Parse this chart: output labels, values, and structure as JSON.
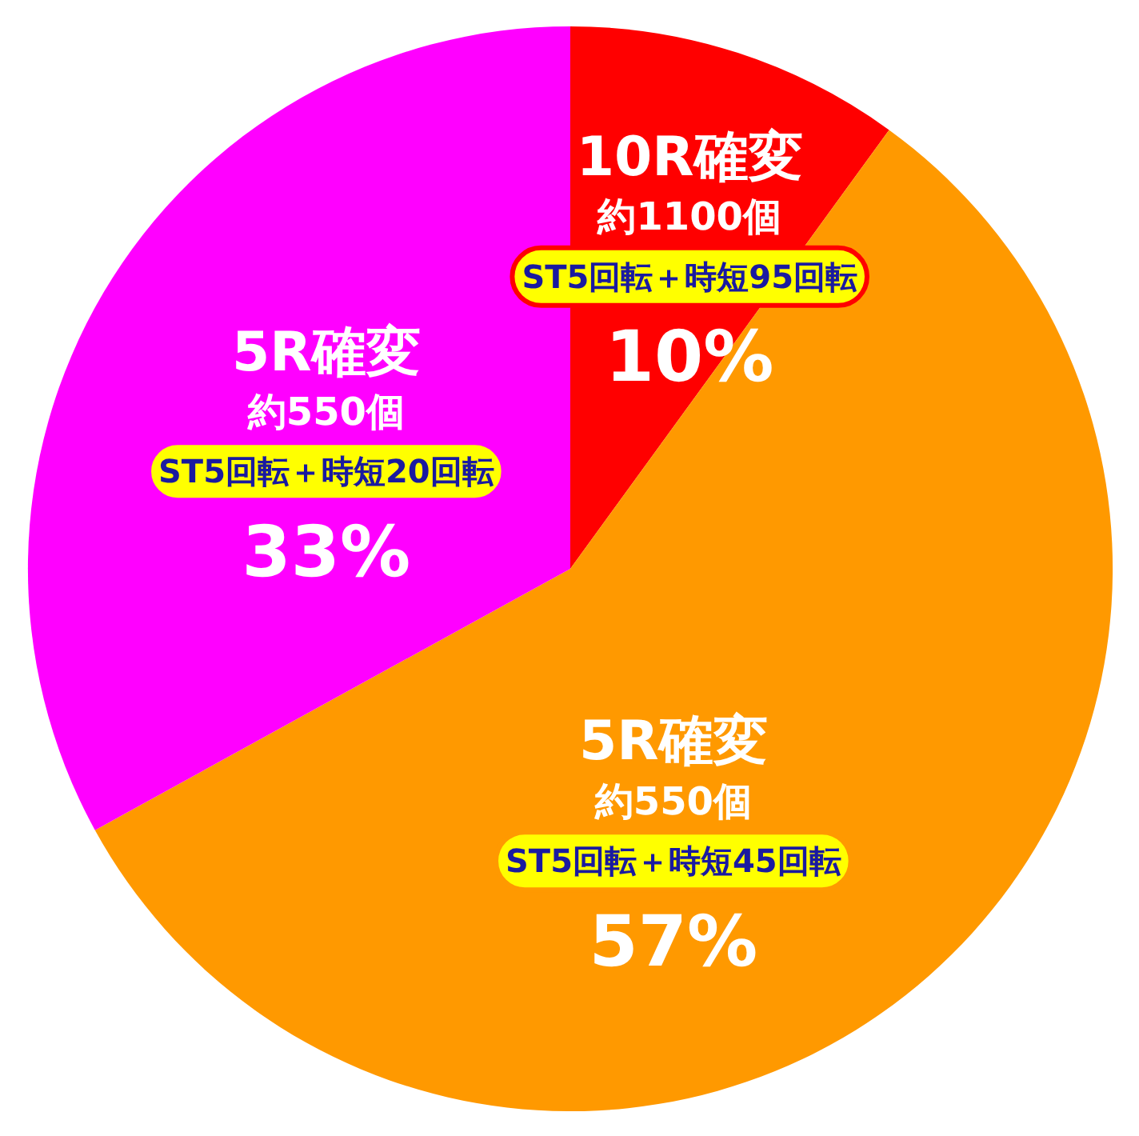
{
  "chart_data": {
    "type": "pie",
    "categories": [
      "10R確変",
      "5R確変",
      "5R確変"
    ],
    "values": [
      10,
      57,
      33
    ],
    "colors": [
      "#ff0000",
      "#ff9900",
      "#ff00ff"
    ],
    "value_labels": [
      "10%",
      "57%",
      "33%"
    ],
    "annotations": [
      "約1100個",
      "ST5回転＋時短95回転",
      "約550個",
      "ST5回転＋時短45回転",
      "約550個",
      "ST5回転＋時短20回転"
    ]
  }
}
